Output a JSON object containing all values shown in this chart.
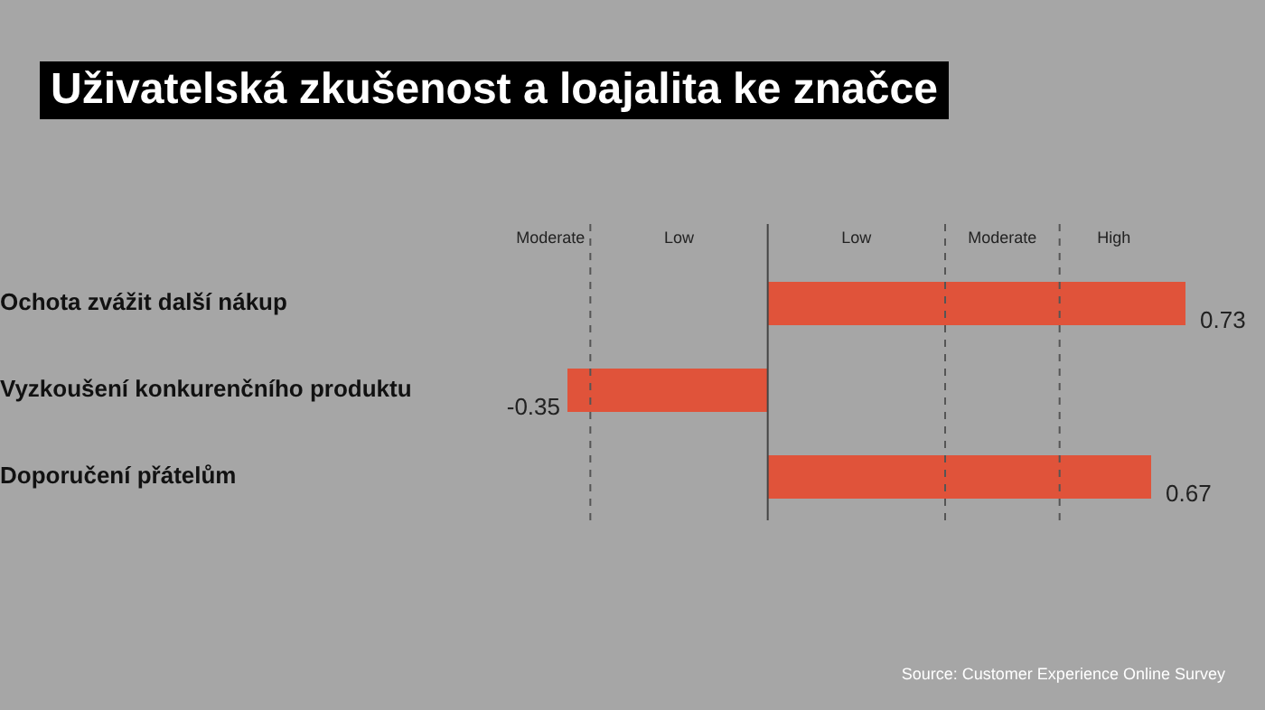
{
  "chart_data": {
    "type": "bar",
    "orientation": "horizontal",
    "title": "Uživatelská zkušenost a loajalita ke značce",
    "categories": [
      "Ochota zvážit další nákup",
      "Vyzkoušení konkurenčního produktu",
      "Doporučení přátelům"
    ],
    "values": [
      0.73,
      -0.35,
      0.67
    ],
    "color": "#e0533a",
    "data_labels": true,
    "legend": false,
    "ref_lines": [
      {
        "axis": "x",
        "value": -0.31,
        "line_style": "dashed",
        "color": "#555555"
      },
      {
        "axis": "x",
        "value": 0,
        "line_style": "solid",
        "color": "#444444"
      },
      {
        "axis": "x",
        "value": 0.31,
        "line_style": "dashed",
        "color": "#555555"
      },
      {
        "axis": "x",
        "value": 0.51,
        "line_style": "dashed",
        "color": "#555555"
      }
    ],
    "annotations": [
      "Moderate",
      "Low",
      "Low",
      "Moderate",
      "High",
      "Source: Customer Experience Online Survey"
    ]
  }
}
